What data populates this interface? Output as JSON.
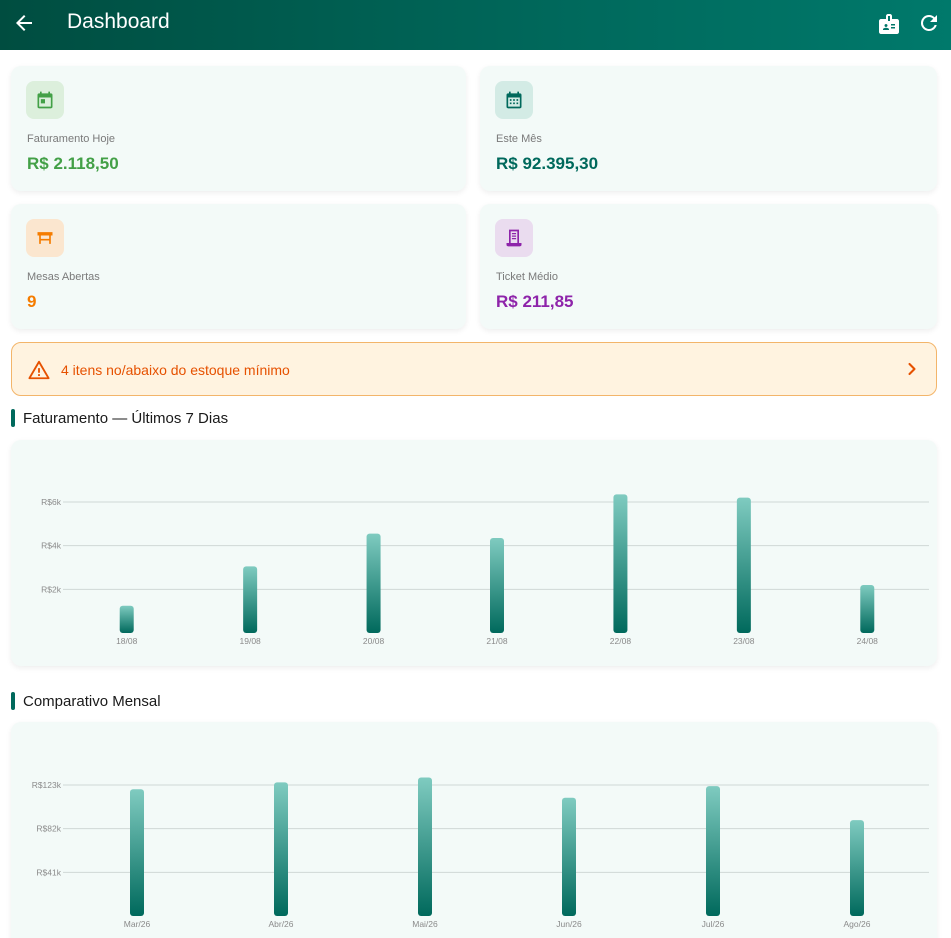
{
  "appbar": {
    "title": "Dashboard",
    "back_icon": "arrow-left-icon",
    "actions": [
      "id-badge-icon",
      "refresh-icon"
    ]
  },
  "kpis": [
    {
      "label": "Faturamento Hoje",
      "value": "R$ 2.118,50",
      "icon": "calendar-today-icon",
      "color": "#43a047",
      "bg": "#dcefdc"
    },
    {
      "label": "Este Mês",
      "value": "R$ 92.395,30",
      "icon": "calendar-month-icon",
      "color": "#00695c",
      "bg": "#d3ebe5"
    },
    {
      "label": "Mesas Abertas",
      "value": "9",
      "icon": "table-icon",
      "color": "#f57c00",
      "bg": "#fbe6cf"
    },
    {
      "label": "Ticket Médio",
      "value": "R$ 211,85",
      "icon": "receipt-icon",
      "color": "#8e24aa",
      "bg": "#eadcef"
    }
  ],
  "alert": {
    "text": "4 itens no/abaixo do estoque mínimo",
    "color": "#e65100"
  },
  "sections": {
    "weekly": "Faturamento — Últimos 7 Dias",
    "monthly": "Comparativo Mensal"
  },
  "chart_data": [
    {
      "type": "bar",
      "title": "Faturamento — Últimos 7 Dias",
      "categories": [
        "18/08",
        "19/08",
        "20/08",
        "21/08",
        "22/08",
        "23/08",
        "24/08"
      ],
      "values": [
        1250,
        3050,
        4550,
        4350,
        6350,
        6200,
        2200
      ],
      "ylim": [
        0,
        6000
      ],
      "yticks": [
        2000,
        4000,
        6000
      ],
      "ytick_labels": [
        "R$2k",
        "R$4k",
        "R$6k"
      ],
      "grid": true
    },
    {
      "type": "bar",
      "title": "Comparativo Mensal",
      "categories": [
        "Mar/26",
        "Abr/26",
        "Mai/26",
        "Jun/26",
        "Jul/26",
        "Ago/26"
      ],
      "values": [
        119000,
        125500,
        130000,
        111000,
        122000,
        90000
      ],
      "ylim": [
        0,
        123000
      ],
      "yticks": [
        41000,
        82000,
        123000
      ],
      "ytick_labels": [
        "R$41k",
        "R$82k",
        "R$123k"
      ],
      "grid": true
    }
  ]
}
